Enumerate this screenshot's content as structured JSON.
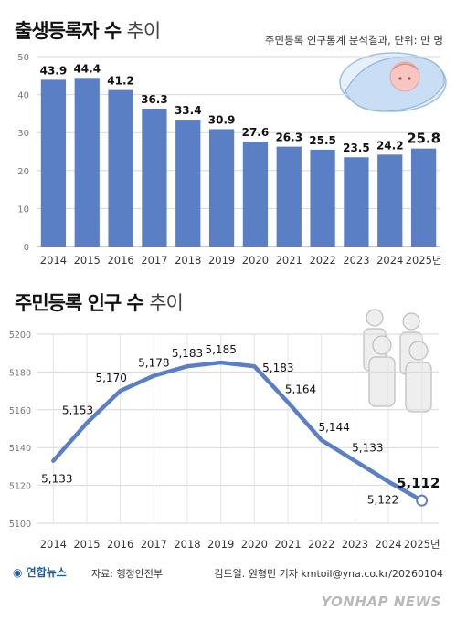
{
  "chart1": {
    "title_bold": "출생등록자 수",
    "title_light": "추이",
    "unit_note": "주민등록 인구통계 분석결과, 단위: 만 명"
  },
  "chart2": {
    "title_bold": "주민등록 인구 수",
    "title_light": "추이"
  },
  "footer": {
    "logo": "연합뉴스",
    "source": "자료: 행정안전부",
    "credit": "김토일. 원형민 기자 kmtoil@yna.co.kr/20260104",
    "watermark": "YONHAP NEWS"
  },
  "colors": {
    "bar": "#5b7fc4",
    "line": "#5b7fc4",
    "grid": "#d7d7d7",
    "axis_text": "#333333"
  },
  "chart_data": [
    {
      "type": "bar",
      "title": "출생등록자 수 추이",
      "categories": [
        "2014",
        "2015",
        "2016",
        "2017",
        "2018",
        "2019",
        "2020",
        "2021",
        "2022",
        "2023",
        "2024",
        "2025년"
      ],
      "values": [
        43.9,
        44.4,
        41.2,
        36.3,
        33.4,
        30.9,
        27.6,
        26.3,
        25.5,
        23.5,
        24.2,
        25.8
      ],
      "value_labels": [
        "43.9",
        "44.4",
        "41.2",
        "36.3",
        "33.4",
        "30.9",
        "27.6",
        "26.3",
        "25.5",
        "23.5",
        "24.2",
        "25.8"
      ],
      "y_ticks": [
        "0",
        "10",
        "20",
        "30",
        "40",
        "50"
      ],
      "ylim": [
        0,
        50
      ],
      "grid": true,
      "highlight_last": true
    },
    {
      "type": "line",
      "title": "주민등록 인구 수 추이",
      "categories": [
        "2014",
        "2015",
        "2016",
        "2017",
        "2018",
        "2019",
        "2020",
        "2021",
        "2022",
        "2023",
        "2024",
        "2025년"
      ],
      "values": [
        5133,
        5153,
        5170,
        5178,
        5183,
        5185,
        5183,
        5164,
        5144,
        5133,
        5122,
        5112
      ],
      "value_labels": [
        "5,133",
        "5,153",
        "5,170",
        "5,178",
        "5,183",
        "5,185",
        "5,183",
        "5,164",
        "5,144",
        "5,133",
        "5,122",
        "5,112"
      ],
      "y_ticks": [
        "5100",
        "5120",
        "5140",
        "5160",
        "5180",
        "5200"
      ],
      "ylim": [
        5100,
        5200
      ],
      "grid": true,
      "highlight_last": true
    }
  ]
}
